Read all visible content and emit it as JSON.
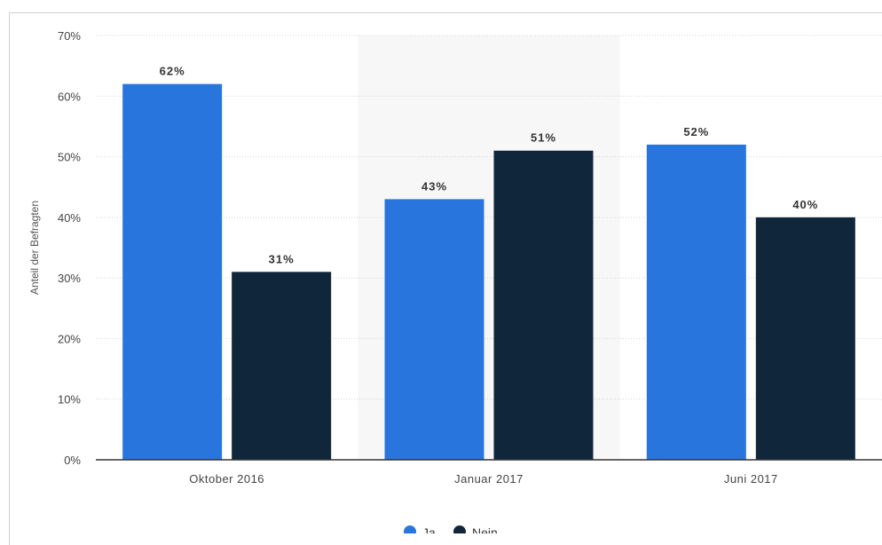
{
  "chart_data": {
    "type": "bar",
    "categories": [
      "Oktober 2016",
      "Januar 2017",
      "Juni 2017"
    ],
    "series": [
      {
        "name": "Ja",
        "values": [
          62,
          43,
          52
        ],
        "color": "#2876dd"
      },
      {
        "name": "Nein",
        "values": [
          31,
          51,
          40
        ],
        "color": "#10263b"
      }
    ],
    "value_labels": [
      [
        "62%",
        "43%",
        "52%"
      ],
      [
        "31%",
        "51%",
        "40%"
      ]
    ],
    "ylabel": "Anteil der Befragten",
    "xlabel": "",
    "ylim": [
      0,
      70
    ],
    "yticks": [
      0,
      10,
      20,
      30,
      40,
      50,
      60,
      70
    ],
    "ytick_labels": [
      "0%",
      "10%",
      "20%",
      "30%",
      "40%",
      "50%",
      "60%",
      "70%"
    ],
    "grid": true,
    "legend_position": "bottom"
  }
}
